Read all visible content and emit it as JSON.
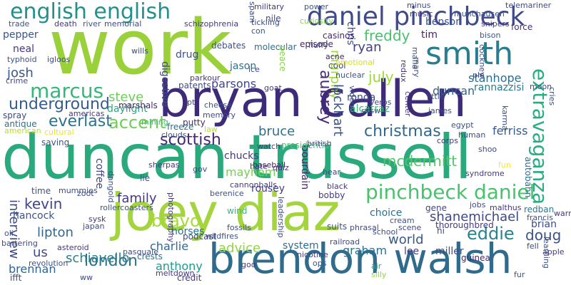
{
  "cloud": {
    "words": [
      "work",
      "duncan trussell",
      "bryan callen",
      "joey diaz",
      "brendon walsh",
      "smith",
      "daniel pinchbeck",
      "english english",
      "pinchbeck daniel",
      "marcus",
      "accent",
      "extravaganza",
      "underground",
      "everlast",
      "scottish",
      "christmas",
      "aubrey",
      "eddie",
      "doug",
      "london",
      "mcdermitt",
      "bravo",
      "family",
      "kevin",
      "freddy",
      "murphy",
      "lockhart",
      "chris",
      "josh",
      "steve",
      "advice",
      "ryan",
      "schiavello",
      "interview",
      "lipton",
      "bruce",
      "duncan",
      "shanemichael",
      "world",
      "july",
      "mayhem",
      "graham",
      "brennan",
      "us",
      "parsons",
      "stanhope",
      "ferriss",
      "charlie",
      "anthony",
      "rannazzisi",
      "digestive",
      "jason",
      "drug",
      "coffee",
      "bourdain",
      "ronda",
      "alcatraz",
      "chucks",
      "hancock",
      "neal",
      "pepper",
      "tim",
      "benson",
      "force",
      "daylight",
      "miller",
      "lee",
      "choice",
      "thoroughbred",
      "brian",
      "redban",
      "cool",
      "spray",
      "rousey",
      "system",
      "bobby",
      "saving",
      "freeze",
      "time",
      "putty",
      "podcast",
      "horses",
      "ifft",
      "credit",
      "antique",
      "crests",
      "marshals",
      "patents",
      "debates",
      "molecular",
      "peace",
      "episode",
      "nile",
      "casinos",
      "presidential",
      "autobahn",
      "suits",
      "gene",
      "hi",
      "guinea",
      "wind",
      "lie",
      "zoot",
      "sherpas",
      "cannonballs",
      "baseball",
      "watch",
      "black",
      "phrasal",
      "scene",
      "malthus",
      "little",
      "moon",
      "crime",
      "typhoid",
      "igloos",
      "wills",
      "parkour",
      "memory",
      "cheese",
      "ice",
      "goat",
      "acne",
      "fluffy",
      "nuclear",
      "verbs",
      "sxsw",
      "james",
      "cries",
      "shoo",
      "corps",
      "human",
      "egypt",
      "syndrome",
      "fun",
      "bear",
      "berenice",
      "leadership",
      "photography",
      "dangold",
      "mummies",
      "rollercoasters",
      "japan",
      "sysk",
      "fossils",
      "wildfires",
      "nicotine",
      "railroad",
      "cream",
      "school",
      "silly",
      "air",
      "meltdown",
      "revolution",
      "bartering",
      "asteroid",
      "oli",
      "pasquale",
      "learning",
      "apple",
      "fell",
      "francis",
      "warm",
      "jobs",
      "death",
      "river",
      "memorial",
      "trade",
      "schizophrenia",
      "tickling",
      "con",
      "curiosity",
      "spam",
      "military",
      "power",
      "minus",
      "music",
      "munchausen",
      "telemariner",
      "snipers",
      "bison",
      "cockney",
      "redux",
      "mafia",
      "mary",
      "center",
      "videos",
      "emotional",
      "hate",
      "british",
      "law",
      "clouds",
      "mining",
      "pt",
      "americas",
      "cultural",
      "american",
      "pie",
      "karma",
      "quiz",
      "gov",
      "ops",
      "goo",
      "ww",
      "fur"
    ]
  }
}
